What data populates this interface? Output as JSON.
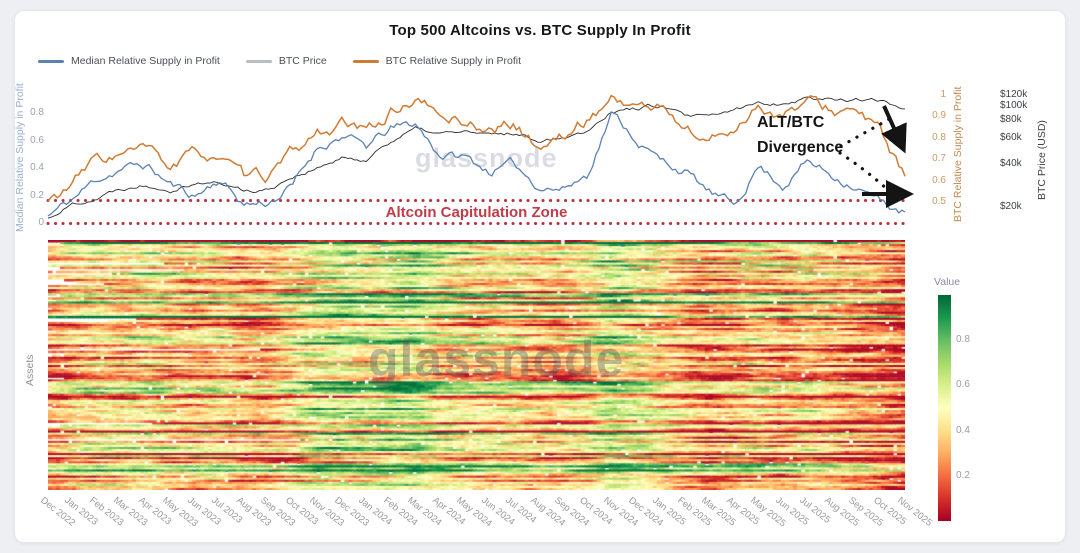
{
  "title": "Top 500 Altcoins vs. BTC Supply In Profit",
  "watermark": "glassnode",
  "page": {
    "background": "#edeff3",
    "card_background": "#ffffff"
  },
  "colors": {
    "median_line": "#5b82b2",
    "btc_price_line": "#2d2d2d",
    "btc_supply_line": "#d07b33",
    "legend_btc_price_swatch": "#b9bec3",
    "zone_dotted": "#b8303f",
    "zone_text": "#c23b49",
    "annotation_black": "#141414"
  },
  "annotations": {
    "divergence_top": "ALT/BTC",
    "divergence_bottom": "Divergence",
    "capitulation_zone": "Altcoin Capitulation Zone"
  },
  "axes": {
    "left": {
      "label": "Median Relative Supply in Profit",
      "ticks": [
        {
          "label": "0.8",
          "value": 0.8
        },
        {
          "label": "0.6",
          "value": 0.6
        },
        {
          "label": "0.4",
          "value": 0.4
        },
        {
          "label": "0.2",
          "value": 0.2
        },
        {
          "label": "0",
          "value": 0.0
        }
      ]
    },
    "right_supply": {
      "label": "BTC Relative Supply in Profit",
      "ticks": [
        {
          "label": "1",
          "value": 1.0
        },
        {
          "label": "0.9",
          "value": 0.9
        },
        {
          "label": "0.8",
          "value": 0.8
        },
        {
          "label": "0.7",
          "value": 0.7
        },
        {
          "label": "0.6",
          "value": 0.6
        },
        {
          "label": "0.5",
          "value": 0.5
        }
      ]
    },
    "right_price": {
      "label": "BTC Price (USD)",
      "scale": "log",
      "ticks": [
        {
          "label": "$120k",
          "value": 120000
        },
        {
          "label": "$100k",
          "value": 100000
        },
        {
          "label": "$80k",
          "value": 80000
        },
        {
          "label": "$60k",
          "value": 60000
        },
        {
          "label": "$40k",
          "value": 40000
        },
        {
          "label": "$20k",
          "value": 20000
        }
      ]
    }
  },
  "heatmap": {
    "ylabel": "Assets",
    "rows": 122,
    "cols": 214,
    "seed": 1337,
    "colormap_stops": [
      "#a50026",
      "#d73027",
      "#f46d43",
      "#fdae61",
      "#fee08b",
      "#ffffbf",
      "#d9ef8b",
      "#a6d96a",
      "#66bd63",
      "#1a9850",
      "#006837"
    ],
    "colorbar": {
      "title": "Value",
      "ticks": [
        {
          "label": "0.8",
          "value": 0.8
        },
        {
          "label": "0.6",
          "value": 0.6
        },
        {
          "label": "0.4",
          "value": 0.4
        },
        {
          "label": "0.2",
          "value": 0.2
        }
      ]
    }
  },
  "chart_data": [
    {
      "type": "line",
      "title": "Top 500 Altcoins vs. BTC Supply In Profit",
      "x": [
        "Dec 2022",
        "Jan 2023",
        "Feb 2023",
        "Mar 2023",
        "Apr 2023",
        "May 2023",
        "Jun 2023",
        "Jul 2023",
        "Aug 2023",
        "Sep 2023",
        "Oct 2023",
        "Nov 2023",
        "Dec 2023",
        "Jan 2024",
        "Feb 2024",
        "Mar 2024",
        "Apr 2024",
        "May 2024",
        "Jun 2024",
        "Jul 2024",
        "Aug 2024",
        "Sep 2024",
        "Oct 2024",
        "Nov 2024",
        "Dec 2024",
        "Jan 2025",
        "Feb 2025",
        "Mar 2025",
        "Apr 2025",
        "May 2025",
        "Jun 2025",
        "Jul 2025",
        "Aug 2025",
        "Sep 2025",
        "Oct 2025",
        "Nov 2025"
      ],
      "series": [
        {
          "name": "Median Relative Supply in Profit",
          "axis": "left",
          "ylim": [
            0,
            1.0
          ],
          "values": [
            0.05,
            0.17,
            0.32,
            0.4,
            0.42,
            0.28,
            0.2,
            0.32,
            0.14,
            0.15,
            0.27,
            0.55,
            0.64,
            0.55,
            0.68,
            0.72,
            0.5,
            0.48,
            0.38,
            0.42,
            0.28,
            0.25,
            0.35,
            0.8,
            0.62,
            0.45,
            0.38,
            0.22,
            0.12,
            0.42,
            0.28,
            0.45,
            0.35,
            0.28,
            0.15,
            0.08
          ]
        },
        {
          "name": "BTC Price",
          "axis": "price_usd_log",
          "ylim": [
            15000,
            125000
          ],
          "values": [
            16600,
            21000,
            23500,
            27000,
            29000,
            27000,
            30000,
            29500,
            26000,
            26500,
            33000,
            37000,
            43000,
            42500,
            58000,
            69000,
            64000,
            67000,
            62000,
            65000,
            59000,
            62000,
            68000,
            94000,
            97000,
            102000,
            85000,
            83000,
            93000,
            105000,
            106000,
            115000,
            112000,
            113000,
            108000,
            96000
          ]
        },
        {
          "name": "BTC Relative Supply in Profit",
          "axis": "right",
          "ylim": [
            0.45,
            1.02
          ],
          "values": [
            0.5,
            0.58,
            0.7,
            0.72,
            0.74,
            0.66,
            0.72,
            0.72,
            0.6,
            0.62,
            0.72,
            0.82,
            0.86,
            0.82,
            0.92,
            0.98,
            0.9,
            0.88,
            0.84,
            0.86,
            0.76,
            0.8,
            0.88,
            0.99,
            0.95,
            0.94,
            0.85,
            0.78,
            0.84,
            0.96,
            0.9,
            0.96,
            0.93,
            0.92,
            0.82,
            0.62
          ]
        }
      ],
      "annotations": [
        "ALT/BTC Divergence",
        "Altcoin Capitulation Zone (approx. 0 - 0.17 on left axis)"
      ],
      "legend_position": "top-left",
      "grid": false
    },
    {
      "type": "heatmap",
      "ylabel": "Assets",
      "colorbar_title": "Value",
      "value_range": [
        0,
        1
      ],
      "x": [
        "Dec 2022",
        "Jan 2023",
        "Feb 2023",
        "Mar 2023",
        "Apr 2023",
        "May 2023",
        "Jun 2023",
        "Jul 2023",
        "Aug 2023",
        "Sep 2023",
        "Oct 2023",
        "Nov 2023",
        "Dec 2023",
        "Jan 2024",
        "Feb 2024",
        "Mar 2024",
        "Apr 2024",
        "May 2024",
        "Jun 2024",
        "Jul 2024",
        "Aug 2024",
        "Sep 2024",
        "Oct 2024",
        "Nov 2024",
        "Dec 2024",
        "Jan 2025",
        "Feb 2025",
        "Mar 2025",
        "Apr 2025",
        "May 2025",
        "Jun 2025",
        "Jul 2025",
        "Aug 2025",
        "Sep 2025",
        "Oct 2025",
        "Nov 2025"
      ],
      "monthly_mean_value": [
        0.3,
        0.42,
        0.45,
        0.42,
        0.48,
        0.4,
        0.38,
        0.42,
        0.32,
        0.34,
        0.45,
        0.58,
        0.6,
        0.55,
        0.62,
        0.66,
        0.52,
        0.48,
        0.44,
        0.46,
        0.36,
        0.4,
        0.46,
        0.62,
        0.55,
        0.46,
        0.38,
        0.32,
        0.36,
        0.44,
        0.36,
        0.42,
        0.36,
        0.3,
        0.26,
        0.18
      ]
    }
  ]
}
